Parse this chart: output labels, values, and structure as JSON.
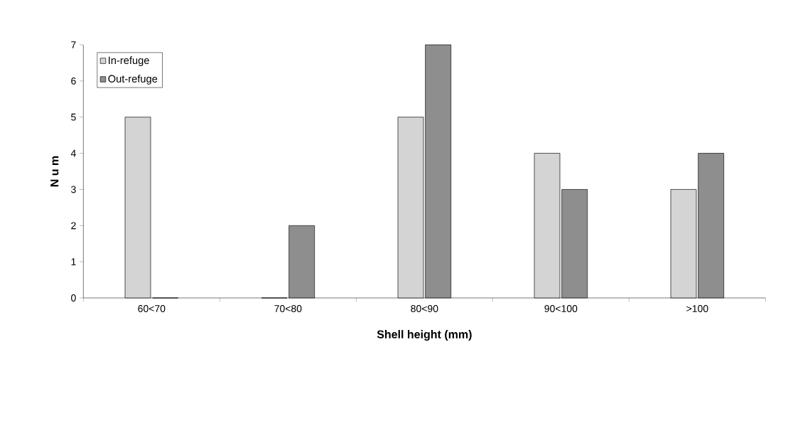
{
  "chart_data": {
    "type": "bar",
    "xlabel": "Shell height (mm)",
    "ylabel": "N u m",
    "categories": [
      "60<70",
      "70<80",
      "80<90",
      "90<100",
      ">100"
    ],
    "series": [
      {
        "name": "In-refuge",
        "color": "#d4d4d4",
        "values": [
          5,
          0,
          5,
          4,
          3
        ]
      },
      {
        "name": "Out-refuge",
        "color": "#8e8e8e",
        "values": [
          0,
          2,
          7,
          3,
          4
        ]
      }
    ],
    "ylim": [
      0,
      7
    ],
    "yticks": [
      0,
      1,
      2,
      3,
      4,
      5,
      6,
      7
    ],
    "grid": false,
    "legend": "top left"
  }
}
